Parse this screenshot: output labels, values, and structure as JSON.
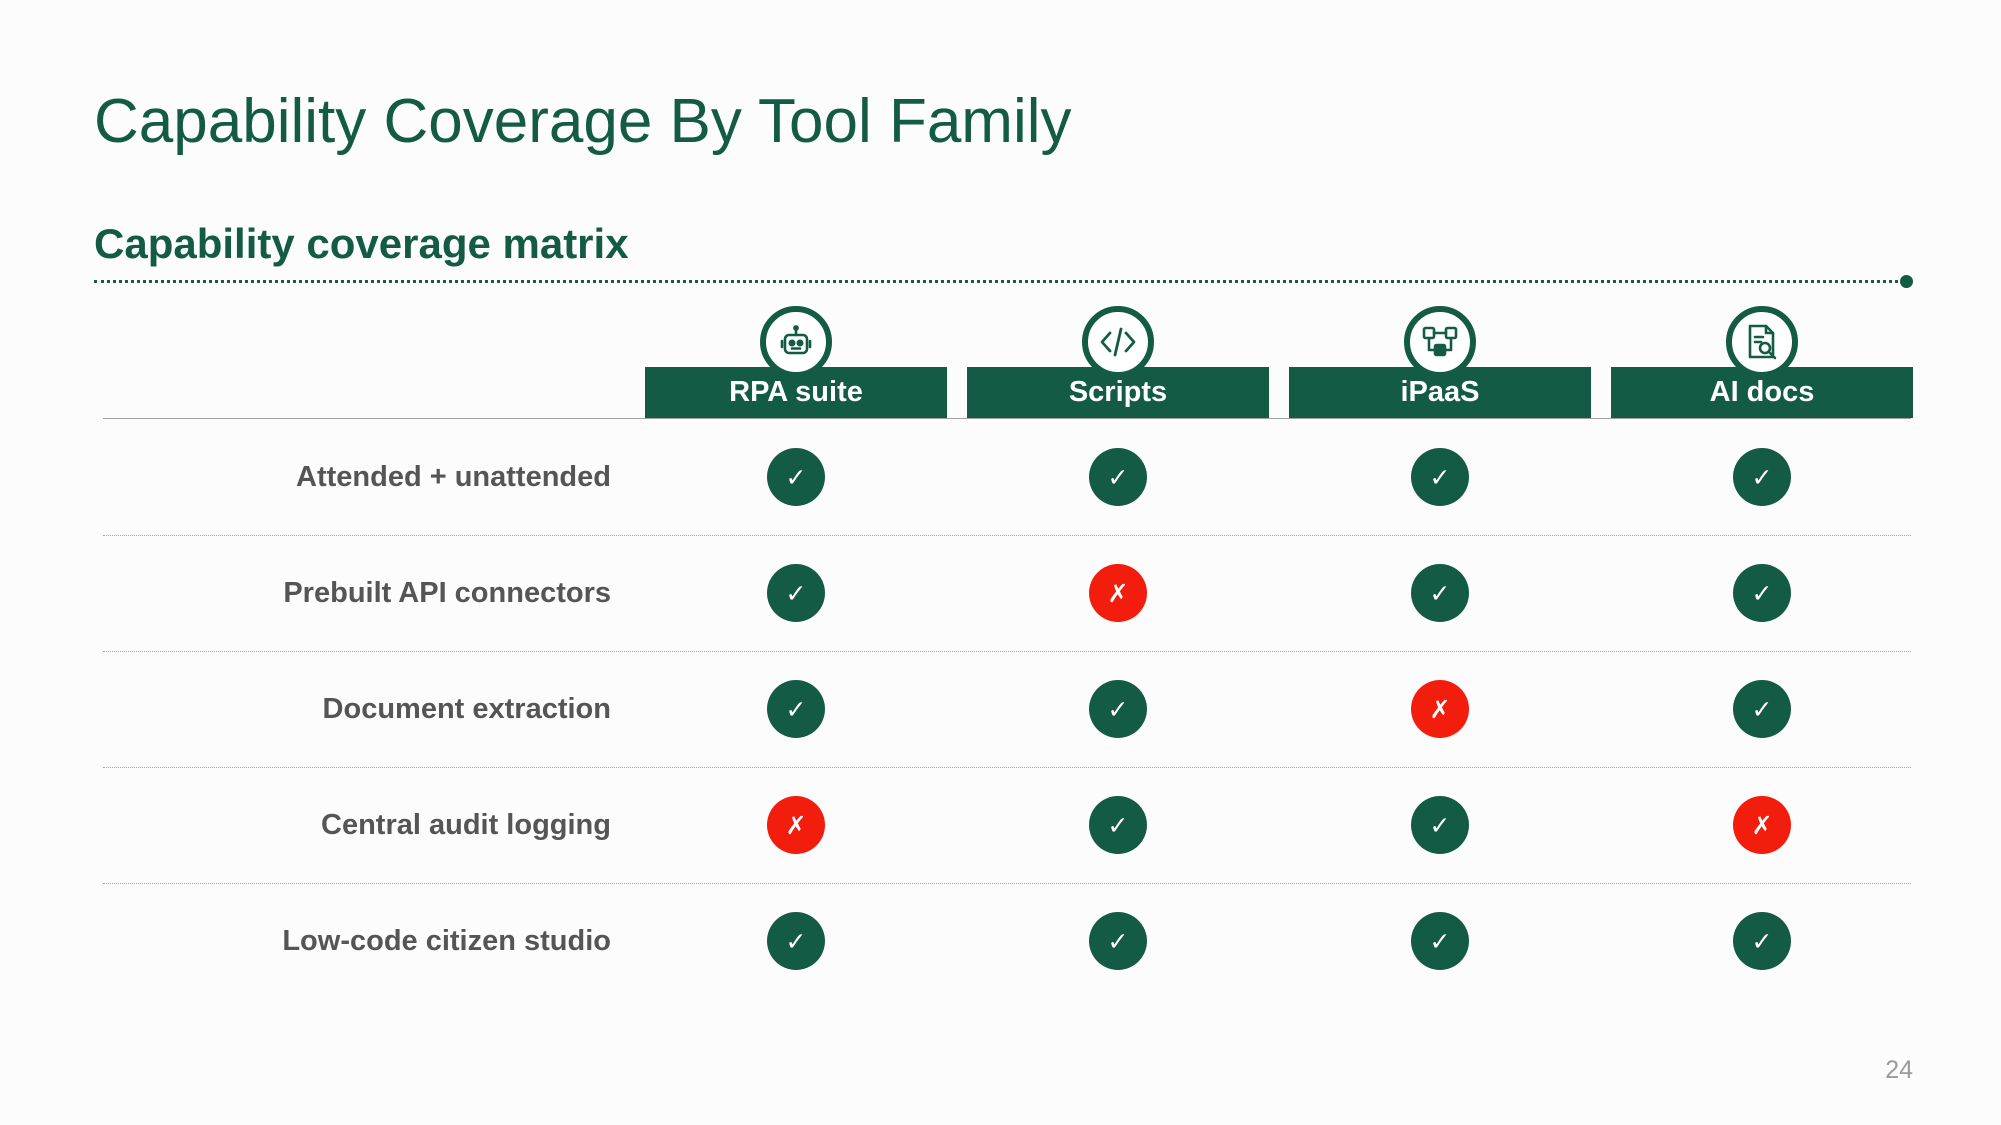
{
  "slide": {
    "title": "Capability Coverage By Tool Family",
    "subtitle": "Capability coverage matrix",
    "page_number": "24"
  },
  "colors": {
    "brand_green": "#135b45",
    "no_red": "#f21d0d",
    "label_gray": "#555555"
  },
  "columns": [
    {
      "label": "RPA suite",
      "icon": "robot-icon"
    },
    {
      "label": "Scripts",
      "icon": "code-icon"
    },
    {
      "label": "iPaaS",
      "icon": "integration-icon"
    },
    {
      "label": "AI docs",
      "icon": "document-search-icon"
    }
  ],
  "rows": [
    {
      "label": "Attended + unattended",
      "cells": [
        true,
        true,
        true,
        true
      ]
    },
    {
      "label": "Prebuilt API connectors",
      "cells": [
        true,
        false,
        true,
        true
      ]
    },
    {
      "label": "Document extraction",
      "cells": [
        true,
        true,
        false,
        true
      ]
    },
    {
      "label": "Central audit logging",
      "cells": [
        false,
        true,
        true,
        false
      ]
    },
    {
      "label": "Low-code citizen studio",
      "cells": [
        true,
        true,
        true,
        true
      ]
    }
  ],
  "symbols": {
    "yes": "✓",
    "no": "✗"
  }
}
